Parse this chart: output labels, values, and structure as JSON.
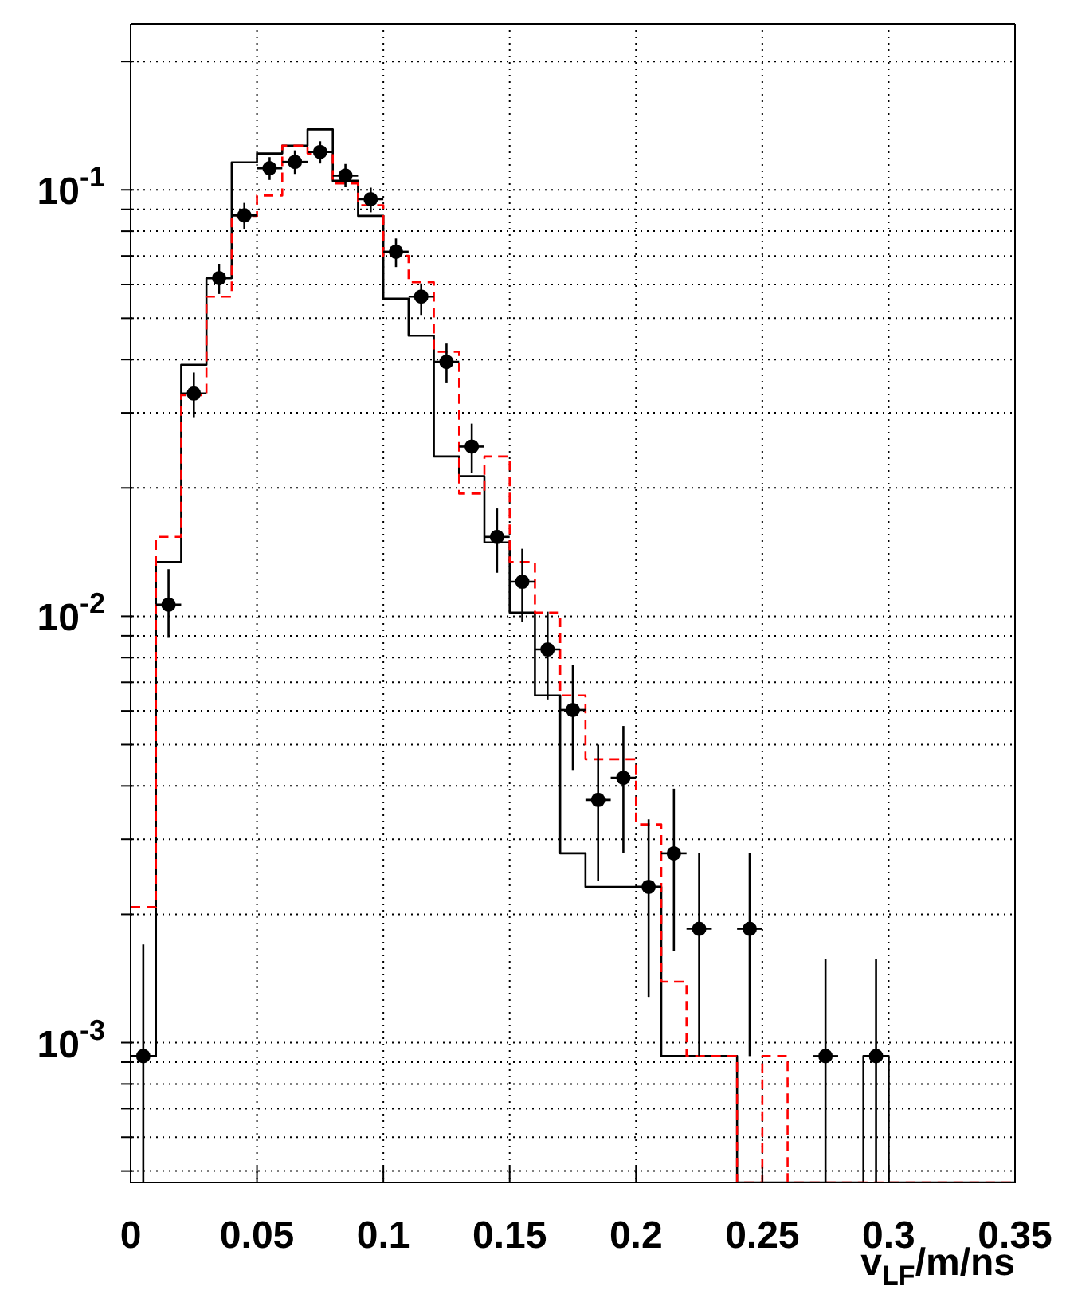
{
  "chart_data": {
    "type": "histogram",
    "xlabel": "v$_{LF}$/m/ns",
    "bins": [
      0,
      0.01,
      0.02,
      0.03,
      0.04,
      0.05,
      0.06,
      0.07,
      0.08,
      0.09,
      0.1,
      0.11,
      0.12,
      0.13,
      0.14,
      0.15,
      0.16,
      0.17,
      0.18,
      0.19,
      0.2,
      0.21,
      0.22,
      0.23,
      0.24,
      0.25,
      0.26,
      0.27,
      0.28,
      0.29,
      0.3,
      0.31,
      0.32,
      0.33,
      0.34,
      0.35
    ],
    "series": [
      {
        "type": "histogram",
        "color": "#000000",
        "line_style": "solid",
        "values": [
          0.00093,
          0.0134,
          0.0389,
          0.0621,
          0.116,
          0.1217,
          0.127,
          0.1386,
          0.105,
          0.0869,
          0.0556,
          0.0455,
          0.0237,
          0.0213,
          0.0149,
          0.0102,
          0.00652,
          0.00278,
          0.00232,
          0.00232,
          0.00232,
          0.00093,
          0.00093,
          0.00093,
          null,
          null,
          null,
          null,
          null,
          0.00093,
          null,
          null,
          null,
          null,
          null
        ]
      },
      {
        "type": "histogram",
        "color": "#ff0000",
        "line_style": "dashed",
        "values": [
          0.00208,
          0.01535,
          0.033,
          0.0562,
          0.0869,
          0.097,
          0.127,
          0.1217,
          0.1035,
          0.092,
          0.07,
          0.0607,
          0.0417,
          0.0194,
          0.0237,
          0.0134,
          0.0102,
          0.00652,
          0.00462,
          0.00462,
          0.00325,
          0.00139,
          0.00093,
          0.00093,
          null,
          0.00093,
          null,
          null,
          null,
          null,
          null,
          null,
          null,
          null,
          null
        ]
      },
      {
        "type": "scatter",
        "color": "#000000",
        "marker": "circle",
        "x": [
          0.005,
          0.015,
          0.025,
          0.035,
          0.045,
          0.055,
          0.065,
          0.075,
          0.085,
          0.095,
          0.105,
          0.115,
          0.125,
          0.135,
          0.145,
          0.155,
          0.165,
          0.175,
          0.185,
          0.195,
          0.205,
          0.215,
          0.225,
          0.245,
          0.275,
          0.295
        ],
        "values": [
          0.00093,
          0.01065,
          0.0333,
          0.0621,
          0.0871,
          0.1124,
          0.1163,
          0.1227,
          0.108,
          0.0951,
          0.0716,
          0.0562,
          0.0395,
          0.025,
          0.01535,
          0.01205,
          0.00836,
          0.00603,
          0.00371,
          0.00418,
          0.00232,
          0.00278,
          0.00185,
          0.00185,
          0.00093,
          0.00093
        ],
        "errors": [
          [
            0.00047,
            0.0017
          ],
          [
            0.0089,
            0.0129
          ],
          [
            0.0293,
            0.0373
          ],
          [
            0.057,
            0.0671
          ],
          [
            0.0809,
            0.0932
          ],
          [
            0.1055,
            0.1193
          ],
          [
            0.109,
            0.1238
          ],
          [
            0.1153,
            0.13
          ],
          [
            0.1014,
            0.115
          ],
          [
            0.0886,
            0.1012
          ],
          [
            0.0659,
            0.0769
          ],
          [
            0.0509,
            0.0603
          ],
          [
            0.0352,
            0.0436
          ],
          [
            0.0217,
            0.0283
          ],
          [
            0.01265,
            0.0179
          ],
          [
            0.00968,
            0.0144
          ],
          [
            0.00638,
            0.01025
          ],
          [
            0.00436,
            0.00769
          ],
          [
            0.0024,
            0.005
          ],
          [
            0.00278,
            0.00553
          ],
          [
            0.00128,
            0.00334
          ],
          [
            0.00164,
            0.00394
          ],
          [
            0.00093,
            0.00278
          ],
          [
            0.00093,
            0.00278
          ],
          [
            0.00047,
            0.00157
          ],
          [
            0.00047,
            0.00157
          ]
        ],
        "xerrors": [
          0.005,
          0.005,
          0.005,
          0.005,
          0.005,
          0.005,
          0.005,
          0.005,
          0.005,
          0.005,
          0.005,
          0.005,
          0.005,
          0.005,
          0.005,
          0.005,
          0.005,
          0.005,
          0.005,
          0.005,
          0.005,
          0.005,
          0.005,
          0.005,
          0.005,
          0.005
        ]
      }
    ],
    "xlim": [
      0,
      0.35
    ],
    "xticks": [
      0,
      0.05,
      0.1,
      0.15,
      0.2,
      0.25,
      0.3,
      0.35
    ],
    "ylim": [
      0.00047,
      0.245
    ],
    "log": "y",
    "yticks": [
      {
        "value": 0.0005,
        "label": null
      },
      {
        "value": 0.0006,
        "label": null
      },
      {
        "value": 0.0007,
        "label": null
      },
      {
        "value": 0.0008,
        "label": null
      },
      {
        "value": 0.0009,
        "label": null
      },
      {
        "value": 0.001,
        "label": "10$^{-3}$"
      },
      {
        "value": 0.002,
        "label": null
      },
      {
        "value": 0.003,
        "label": null
      },
      {
        "value": 0.004,
        "label": null
      },
      {
        "value": 0.005,
        "label": null
      },
      {
        "value": 0.006,
        "label": null
      },
      {
        "value": 0.007,
        "label": null
      },
      {
        "value": 0.008,
        "label": null
      },
      {
        "value": 0.009,
        "label": null
      },
      {
        "value": 0.01,
        "label": "10$^{-2}$"
      },
      {
        "value": 0.02,
        "label": null
      },
      {
        "value": 0.03,
        "label": null
      },
      {
        "value": 0.04,
        "label": null
      },
      {
        "value": 0.05,
        "label": null
      },
      {
        "value": 0.06,
        "label": null
      },
      {
        "value": 0.07,
        "label": null
      },
      {
        "value": 0.08,
        "label": null
      },
      {
        "value": 0.09,
        "label": null
      },
      {
        "value": 0.1,
        "label": "10$^{-1}$"
      },
      {
        "value": 0.2,
        "label": null
      }
    ],
    "grid": true
  }
}
